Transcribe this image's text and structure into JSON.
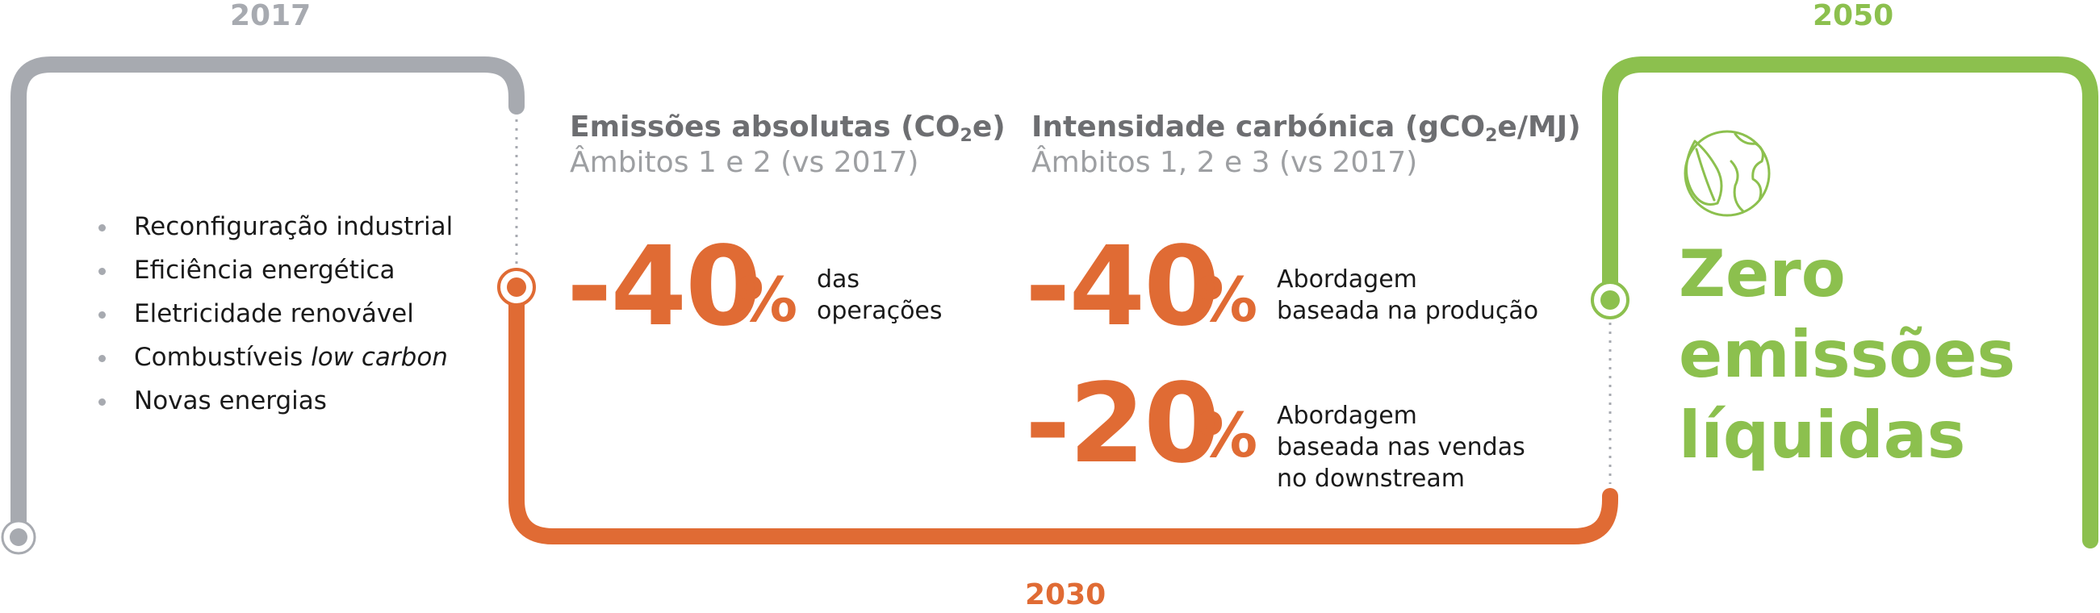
{
  "timeline": {
    "year_start": "2017",
    "year_mid": "2030",
    "year_end": "2050",
    "colors": {
      "gray": "#a7aab0",
      "orange": "#e06b34",
      "green": "#8cc04e",
      "text_gray": "#6d6e71",
      "light_gray": "#9d9fa2"
    }
  },
  "measures": {
    "items": [
      "Reconfiguração industrial",
      "Eficiência energética",
      "Eletricidade renovável",
      "Combustíveis "
    ],
    "fuel_italic": "low carbon",
    "last_item": "Novas energias"
  },
  "absolute": {
    "title_prefix": "Emissões absolutas (CO",
    "title_sub": "2",
    "title_suffix": "e)",
    "subtitle": "Âmbitos 1 e 2 (vs 2017)",
    "value": "-40",
    "unit": "%",
    "desc_line1": "das",
    "desc_line2": "operações"
  },
  "intensity": {
    "title_prefix": "Intensidade carbónica (gCO",
    "title_sub": "2",
    "title_suffix": "e/MJ)",
    "subtitle": "Âmbitos 1, 2 e 3 (vs 2017)",
    "target1": {
      "value": "-40",
      "unit": "%",
      "desc_line1": "Abordagem",
      "desc_line2": "baseada na produção"
    },
    "target2": {
      "value": "-20",
      "unit": "%",
      "desc_line1": "Abordagem",
      "desc_line2": "baseada nas vendas",
      "desc_line3": "no downstream"
    }
  },
  "goal": {
    "icon": "globe-leaf-icon",
    "line1": "Zero",
    "line2": "emissões",
    "line3": "líquidas"
  }
}
